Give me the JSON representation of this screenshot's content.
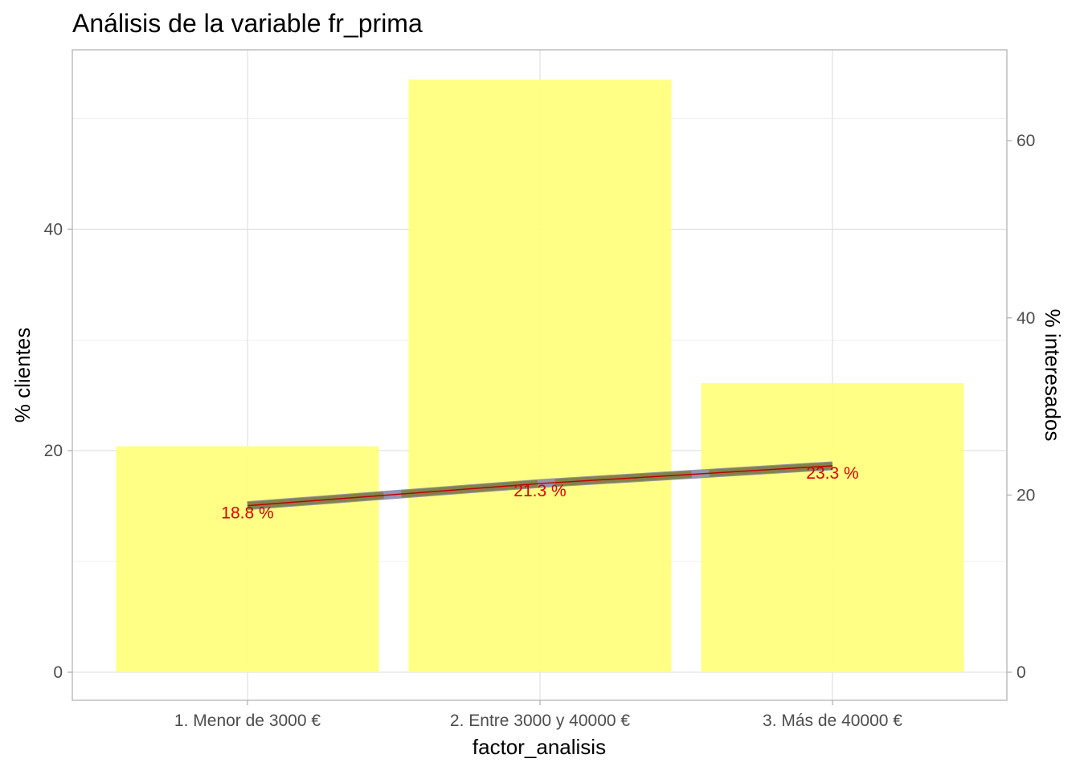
{
  "chart_data": {
    "type": "bar",
    "title": "Análisis de la variable fr_prima",
    "xlabel": "factor_analisis",
    "ylabel": "% clientes",
    "y2label": "% interesados",
    "categories": [
      "1. Menor de 3000 €",
      "2. Entre 3000 y 40000 €",
      "3. Más de 40000 €"
    ],
    "series": [
      {
        "values": [
          20.4,
          53.5,
          26.1
        ],
        "type": "bar",
        "axis": "left",
        "color": "#ffff80"
      },
      {
        "values": [
          18.8,
          21.3,
          23.3
        ],
        "type": "line",
        "axis": "right",
        "color": "#808040",
        "labels": [
          "18.8  %",
          "21.3  %",
          "23.3  %"
        ],
        "label_color": "#e00000"
      }
    ],
    "ylim": [
      0,
      56
    ],
    "yticks": [
      "0",
      "20",
      "40"
    ],
    "y2lim": [
      0,
      70
    ],
    "y2ticks": [
      "0",
      "20",
      "40",
      "60"
    ],
    "grid": true,
    "legend": "none"
  }
}
